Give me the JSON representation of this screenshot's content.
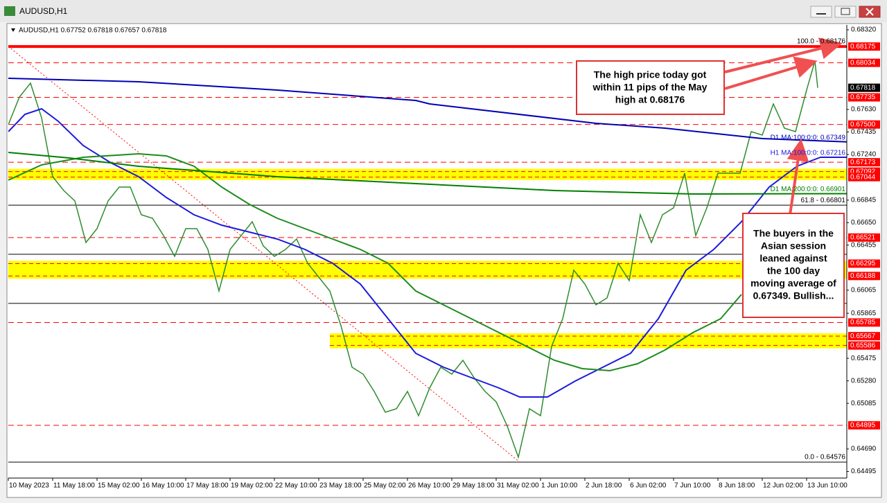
{
  "window": {
    "title": "AUDUSD,H1"
  },
  "chart_data": {
    "type": "line",
    "info": "AUDUSD,H1  0.67752 0.67818 0.67657 0.67818",
    "xlim": [
      0,
      605
    ],
    "ylim": [
      0.64438,
      0.68362
    ],
    "xticks": [
      {
        "value": 0,
        "label": "10 May 2023"
      },
      {
        "value": 32,
        "label": "11 May 18:00"
      },
      {
        "value": 64,
        "label": "15 May 02:00"
      },
      {
        "value": 96,
        "label": "16 May 10:00"
      },
      {
        "value": 128,
        "label": "17 May 18:00"
      },
      {
        "value": 160,
        "label": "19 May 02:00"
      },
      {
        "value": 192,
        "label": "22 May 10:00"
      },
      {
        "value": 224,
        "label": "23 May 18:00"
      },
      {
        "value": 256,
        "label": "25 May 02:00"
      },
      {
        "value": 288,
        "label": "26 May 10:00"
      },
      {
        "value": 320,
        "label": "29 May 18:00"
      },
      {
        "value": 352,
        "label": "31 May 02:00"
      },
      {
        "value": 384,
        "label": "1 Jun 10:00"
      },
      {
        "value": 416,
        "label": "2 Jun 18:00"
      },
      {
        "value": 448,
        "label": "6 Jun 02:00"
      },
      {
        "value": 480,
        "label": "7 Jun 10:00"
      },
      {
        "value": 512,
        "label": "8 Jun 18:00"
      },
      {
        "value": 544,
        "label": "12 Jun 02:00"
      },
      {
        "value": 576,
        "label": "13 Jun 10:00"
      }
    ],
    "yticks": [
      {
        "value": 0.6832,
        "label": "0.68320"
      },
      {
        "value": 0.6763,
        "label": "0.67630"
      },
      {
        "value": 0.67435,
        "label": "0.67435"
      },
      {
        "value": 0.6724,
        "label": "0.67240"
      },
      {
        "value": 0.66845,
        "label": "0.66845"
      },
      {
        "value": 0.6665,
        "label": "0.66650"
      },
      {
        "value": 0.66455,
        "label": "0.66455"
      },
      {
        "value": 0.66065,
        "label": "0.66065"
      },
      {
        "value": 0.65865,
        "label": "0.65865"
      },
      {
        "value": 0.65475,
        "label": "0.65475"
      },
      {
        "value": 0.6528,
        "label": "0.65280"
      },
      {
        "value": 0.65085,
        "label": "0.65085"
      },
      {
        "value": 0.6469,
        "label": "0.64690"
      },
      {
        "value": 0.64495,
        "label": "0.64495"
      }
    ],
    "level_color": "#ff0000",
    "levels": [
      {
        "value": 0.68175,
        "label": "0.68175",
        "style": "solid"
      },
      {
        "value": 0.68034,
        "label": "0.68034",
        "style": "dashed"
      },
      {
        "value": 0.67735,
        "label": "0.67735",
        "style": "dashed"
      },
      {
        "value": 0.675,
        "label": "0.67500",
        "style": "dashed"
      },
      {
        "value": 0.67173,
        "label": "0.67173",
        "style": "dashed"
      },
      {
        "value": 0.66521,
        "label": "0.66521",
        "style": "dashed"
      },
      {
        "value": 0.65785,
        "label": "0.65785",
        "style": "dashed"
      },
      {
        "value": 0.64895,
        "label": "0.64895",
        "style": "dashed"
      }
    ],
    "zone_color": "#ffff00",
    "zones": [
      {
        "values": [
          0.67092,
          0.67044
        ],
        "labels": [
          "0.67092",
          "0.67044"
        ],
        "x_start": 0
      },
      {
        "values": [
          0.66295,
          0.66188
        ],
        "labels": [
          "0.66295",
          "0.66188"
        ],
        "x_start": 0
      },
      {
        "values": [
          0.65667,
          0.65586
        ],
        "labels": [
          "0.65667",
          "0.65586"
        ],
        "x_start": 232
      }
    ],
    "fib_levels": [
      {
        "value": 0.68176,
        "label": "100.0 - 0.68176"
      },
      {
        "value": 0.66801,
        "label": "61.8 - 0.66801"
      },
      {
        "value": 0.64576,
        "label": "0.0 - 0.64576"
      }
    ],
    "fib_lines_unlabeled": [
      0.66376,
      0.65951
    ],
    "trendline": {
      "x": [
        0,
        369
      ],
      "values": [
        0.68176,
        0.64576
      ],
      "color": "#ff0000"
    },
    "last_price": {
      "value": 0.67818,
      "label": "0.67818"
    },
    "series": [
      {
        "color": "#2e8b2e",
        "x": [
          0,
          8,
          16,
          24,
          32,
          40,
          48,
          56,
          64,
          72,
          80,
          88,
          96,
          104,
          112,
          120,
          128,
          136,
          144,
          152,
          160,
          168,
          176,
          184,
          192,
          200,
          208,
          216,
          224,
          232,
          240,
          248,
          256,
          264,
          272,
          280,
          288,
          296,
          304,
          312,
          320,
          328,
          336,
          344,
          352,
          360,
          368,
          376,
          384,
          392,
          400,
          408,
          416,
          424,
          432,
          440,
          448,
          456,
          464,
          472,
          480,
          488,
          496,
          504,
          512,
          520,
          528,
          536,
          544,
          552,
          560,
          568,
          576,
          582,
          584
        ],
        "values": [
          0.67498,
          0.67738,
          0.67858,
          0.67558,
          0.67048,
          0.66928,
          0.66838,
          0.66478,
          0.66598,
          0.66838,
          0.66958,
          0.66958,
          0.66718,
          0.66688,
          0.66538,
          0.66358,
          0.66598,
          0.66598,
          0.66418,
          0.66058,
          0.66418,
          0.66538,
          0.66658,
          0.66448,
          0.66358,
          0.66418,
          0.66508,
          0.66298,
          0.66178,
          0.66058,
          0.65758,
          0.65398,
          0.65338,
          0.65188,
          0.65008,
          0.65038,
          0.65188,
          0.64978,
          0.65218,
          0.65398,
          0.65338,
          0.65458,
          0.65308,
          0.65188,
          0.65098,
          0.64888,
          0.64618,
          0.65038,
          0.64978,
          0.65578,
          0.65818,
          0.66238,
          0.66118,
          0.65938,
          0.65998,
          0.66298,
          0.66148,
          0.66718,
          0.66478,
          0.66718,
          0.66778,
          0.67078,
          0.66538,
          0.66778,
          0.67078,
          0.67078,
          0.67078,
          0.67438,
          0.67408,
          0.67678,
          0.67468,
          0.67438,
          0.67798,
          0.6805,
          0.67818
        ]
      },
      {
        "name": "D1 MA:100:0:0: 0.67349",
        "color": "#0000b4",
        "x": [
          0,
          94,
          194,
          294,
          304,
          424,
          474,
          544,
          605
        ],
        "values": [
          0.679,
          0.6787,
          0.67798,
          0.67708,
          0.67678,
          0.6751,
          0.67468,
          0.67378,
          0.67349
        ]
      },
      {
        "name": "H1 MA:100:0:0: 0.67216",
        "color": "#1a1adc",
        "x": [
          0,
          12,
          24,
          36,
          54,
          74,
          94,
          114,
          134,
          154,
          174,
          194,
          214,
          234,
          254,
          274,
          294,
          314,
          334,
          354,
          369,
          389,
          409,
          429,
          449,
          469,
          489,
          509,
          529,
          549,
          569,
          586,
          605
        ],
        "values": [
          0.67438,
          0.67588,
          0.67636,
          0.67528,
          0.67318,
          0.67168,
          0.67048,
          0.66868,
          0.66718,
          0.66628,
          0.66568,
          0.66508,
          0.66418,
          0.66298,
          0.66118,
          0.65818,
          0.65518,
          0.65398,
          0.65308,
          0.65218,
          0.6514,
          0.6514,
          0.65278,
          0.65398,
          0.65518,
          0.65818,
          0.66238,
          0.66418,
          0.66658,
          0.66958,
          0.67138,
          0.67216,
          0.67216
        ]
      },
      {
        "color": "#1e8c1e",
        "x": [
          0,
          24,
          54,
          94,
          114,
          134,
          154,
          174,
          194,
          214,
          234,
          254,
          274,
          294,
          314,
          334,
          354,
          374,
          394,
          414,
          434,
          454,
          474,
          494,
          514,
          529
        ],
        "values": [
          0.67018,
          0.6715,
          0.67216,
          0.67246,
          0.67228,
          0.67138,
          0.66958,
          0.66808,
          0.66688,
          0.66598,
          0.66508,
          0.66418,
          0.66298,
          0.66058,
          0.65938,
          0.65818,
          0.65698,
          0.65578,
          0.65458,
          0.65386,
          0.65368,
          0.65428,
          0.65548,
          0.65698,
          0.65818,
          0.66028
        ]
      },
      {
        "name": "D1 MA:200:0:0: 0.66901",
        "color": "#008000",
        "x": [
          0,
          44,
          94,
          194,
          294,
          394,
          494,
          605
        ],
        "values": [
          0.67258,
          0.6721,
          0.67138,
          0.67048,
          0.66988,
          0.66928,
          0.66898,
          0.66901
        ]
      }
    ],
    "annotations": [
      {
        "lines": [
          "The high price today got",
          "within 11 pips of the May",
          "high at 0.68176"
        ]
      },
      {
        "lines": [
          "The buyers in the",
          "Asian session",
          "leaned against",
          "the 100 day",
          "moving average of",
          "0.67349.  Bullish..."
        ]
      }
    ]
  }
}
